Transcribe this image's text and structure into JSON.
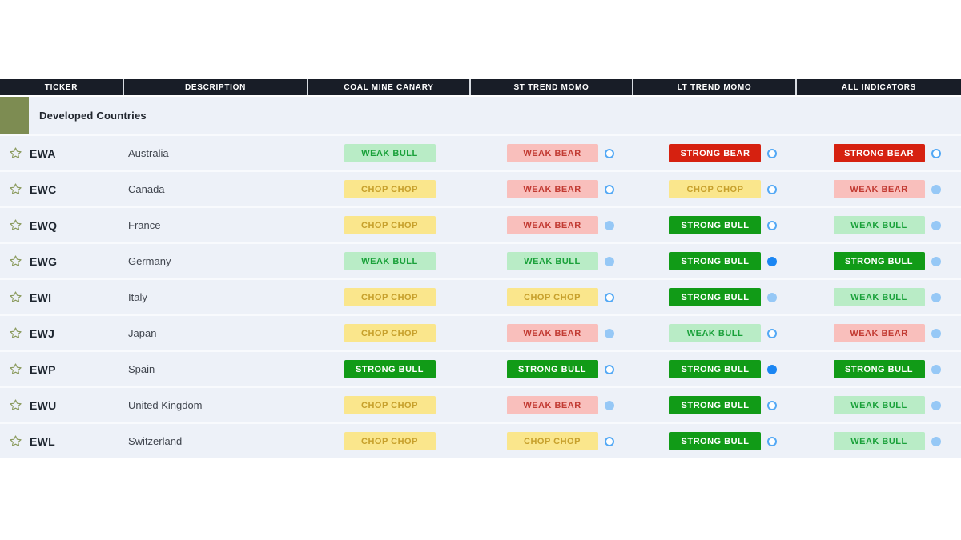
{
  "table": {
    "columns": [
      {
        "label": "TICKER"
      },
      {
        "label": "DESCRIPTION"
      },
      {
        "label": "COAL MINE CANARY"
      },
      {
        "label": "ST TREND MOMO"
      },
      {
        "label": "LT TREND MOMO"
      },
      {
        "label": "ALL INDICATORS"
      }
    ],
    "section": {
      "label": "Developed Countries",
      "swatch_color": "#7d8c52"
    },
    "rows": [
      {
        "ticker": "EWA",
        "description": "Australia",
        "cmc": {
          "label": "WEAK BULL",
          "variant": "weak_bull"
        },
        "st": {
          "label": "WEAK BEAR",
          "variant": "weak_bear",
          "dot": "hollow"
        },
        "lt": {
          "label": "STRONG BEAR",
          "variant": "strong_bear",
          "dot": "hollow"
        },
        "all": {
          "label": "STRONG BEAR",
          "variant": "strong_bear",
          "dot": "hollow"
        }
      },
      {
        "ticker": "EWC",
        "description": "Canada",
        "cmc": {
          "label": "CHOP CHOP",
          "variant": "chop"
        },
        "st": {
          "label": "WEAK BEAR",
          "variant": "weak_bear",
          "dot": "hollow"
        },
        "lt": {
          "label": "CHOP CHOP",
          "variant": "chop",
          "dot": "hollow"
        },
        "all": {
          "label": "WEAK BEAR",
          "variant": "weak_bear",
          "dot": "light"
        }
      },
      {
        "ticker": "EWQ",
        "description": "France",
        "cmc": {
          "label": "CHOP CHOP",
          "variant": "chop"
        },
        "st": {
          "label": "WEAK BEAR",
          "variant": "weak_bear",
          "dot": "light"
        },
        "lt": {
          "label": "STRONG BULL",
          "variant": "strong_bull",
          "dot": "hollow"
        },
        "all": {
          "label": "WEAK BULL",
          "variant": "weak_bull",
          "dot": "light"
        }
      },
      {
        "ticker": "EWG",
        "description": "Germany",
        "cmc": {
          "label": "WEAK BULL",
          "variant": "weak_bull"
        },
        "st": {
          "label": "WEAK BULL",
          "variant": "weak_bull",
          "dot": "light"
        },
        "lt": {
          "label": "STRONG BULL",
          "variant": "strong_bull",
          "dot": "solid"
        },
        "all": {
          "label": "STRONG BULL",
          "variant": "strong_bull",
          "dot": "light"
        }
      },
      {
        "ticker": "EWI",
        "description": "Italy",
        "cmc": {
          "label": "CHOP CHOP",
          "variant": "chop"
        },
        "st": {
          "label": "CHOP CHOP",
          "variant": "chop",
          "dot": "hollow"
        },
        "lt": {
          "label": "STRONG BULL",
          "variant": "strong_bull",
          "dot": "light"
        },
        "all": {
          "label": "WEAK BULL",
          "variant": "weak_bull",
          "dot": "light"
        }
      },
      {
        "ticker": "EWJ",
        "description": "Japan",
        "cmc": {
          "label": "CHOP CHOP",
          "variant": "chop"
        },
        "st": {
          "label": "WEAK BEAR",
          "variant": "weak_bear",
          "dot": "light"
        },
        "lt": {
          "label": "WEAK BULL",
          "variant": "weak_bull",
          "dot": "hollow"
        },
        "all": {
          "label": "WEAK BEAR",
          "variant": "weak_bear",
          "dot": "light"
        }
      },
      {
        "ticker": "EWP",
        "description": "Spain",
        "cmc": {
          "label": "STRONG BULL",
          "variant": "strong_bull"
        },
        "st": {
          "label": "STRONG BULL",
          "variant": "strong_bull",
          "dot": "hollow"
        },
        "lt": {
          "label": "STRONG BULL",
          "variant": "strong_bull",
          "dot": "solid"
        },
        "all": {
          "label": "STRONG BULL",
          "variant": "strong_bull",
          "dot": "light"
        }
      },
      {
        "ticker": "EWU",
        "description": "United Kingdom",
        "cmc": {
          "label": "CHOP CHOP",
          "variant": "chop"
        },
        "st": {
          "label": "WEAK BEAR",
          "variant": "weak_bear",
          "dot": "light"
        },
        "lt": {
          "label": "STRONG BULL",
          "variant": "strong_bull",
          "dot": "hollow"
        },
        "all": {
          "label": "WEAK BULL",
          "variant": "weak_bull",
          "dot": "light"
        }
      },
      {
        "ticker": "EWL",
        "description": "Switzerland",
        "cmc": {
          "label": "CHOP CHOP",
          "variant": "chop"
        },
        "st": {
          "label": "CHOP CHOP",
          "variant": "chop",
          "dot": "hollow"
        },
        "lt": {
          "label": "STRONG BULL",
          "variant": "strong_bull",
          "dot": "hollow"
        },
        "all": {
          "label": "WEAK BULL",
          "variant": "weak_bull",
          "dot": "light"
        }
      }
    ]
  },
  "icons": {
    "favorite": "star-outline-icon"
  },
  "colors": {
    "header_bg": "#181d27",
    "row_bg": "#edf1f8",
    "section_swatch": "#7d8c52",
    "strong_bull_bg": "#119b17",
    "weak_bull_bg": "#b9ecc6",
    "weak_bull_text": "#1aa13a",
    "chop_bg": "#fae68c",
    "chop_text": "#c7a02c",
    "weak_bear_bg": "#f9bfbc",
    "weak_bear_text": "#c23b33",
    "strong_bear_bg": "#d62110",
    "dot_hollow_ring": "#52a8f5",
    "dot_light": "#96c8f6",
    "dot_solid": "#1b86f3"
  }
}
